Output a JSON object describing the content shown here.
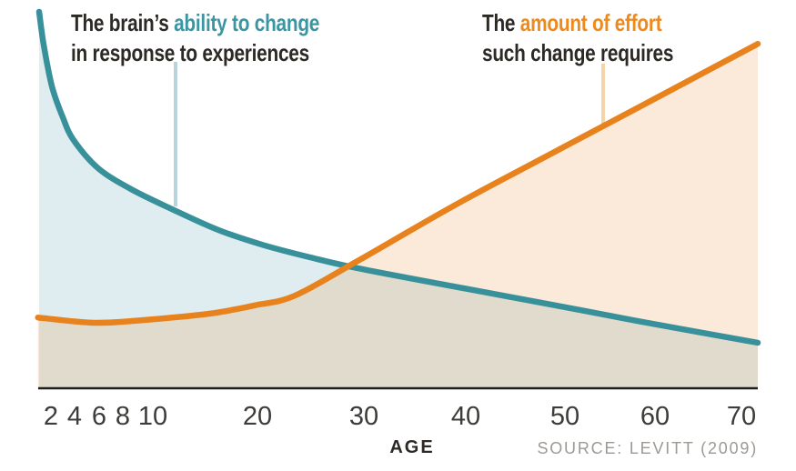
{
  "chart_data": {
    "type": "line",
    "title_left": {
      "prefix": "The brain’s ",
      "highlight": "ability to change",
      "line2": "in response to experiences",
      "highlight_color": "#3a96a2"
    },
    "title_right": {
      "prefix": "The ",
      "highlight": "amount of effort",
      "line2": "such change requires",
      "highlight_color": "#ee8a1d"
    },
    "xlabel": "AGE",
    "source": "SOURCE: LEVITT (2009)",
    "x_ticks": [
      "2",
      "4",
      "6",
      "8",
      "10",
      "20",
      "30",
      "40",
      "50",
      "60",
      "70"
    ],
    "x_tick_ages": [
      2,
      4,
      6,
      8,
      10,
      20,
      30,
      40,
      50,
      60,
      70
    ],
    "ylabel": "",
    "y_axis_note": "relative level, unlabeled (0-100 normalized)",
    "axis_color": "#1d1d1b",
    "grid": false,
    "legend_position": "titles-above-curves",
    "series": [
      {
        "name": "brain-ability-to-change",
        "color": "#38909a",
        "fill": "rgba(58,142,160,0.16)",
        "points": [
          [
            1.0,
            100
          ],
          [
            1.4,
            91
          ],
          [
            2.1,
            80
          ],
          [
            3.0,
            72
          ],
          [
            3.9,
            66
          ],
          [
            5.9,
            58.5
          ],
          [
            8.5,
            53
          ],
          [
            11.9,
            47.5
          ],
          [
            16.3,
            42
          ],
          [
            20.6,
            38
          ],
          [
            24.9,
            34.8
          ],
          [
            29.4,
            31.9
          ],
          [
            38.9,
            27
          ],
          [
            48.1,
            22.5
          ],
          [
            58.0,
            17.9
          ],
          [
            71.9,
            12.1
          ]
        ]
      },
      {
        "name": "effort-change-requires",
        "color": "#e8821d",
        "fill": "rgba(232,130,30,0.17)",
        "points": [
          [
            0.9,
            18.8
          ],
          [
            5.6,
            17.4
          ],
          [
            9.3,
            18.1
          ],
          [
            15.4,
            19.8
          ],
          [
            19.7,
            22.0
          ],
          [
            23.5,
            24.6
          ],
          [
            29.4,
            33.8
          ],
          [
            38.9,
            48.6
          ],
          [
            48.1,
            61.6
          ],
          [
            58.0,
            74.4
          ],
          [
            71.9,
            91.5
          ]
        ]
      }
    ],
    "callouts": [
      {
        "for": "brain-ability-to-change",
        "color": "#bad4dc"
      },
      {
        "for": "effort-change-requires",
        "color": "#f6d3a8"
      }
    ]
  }
}
